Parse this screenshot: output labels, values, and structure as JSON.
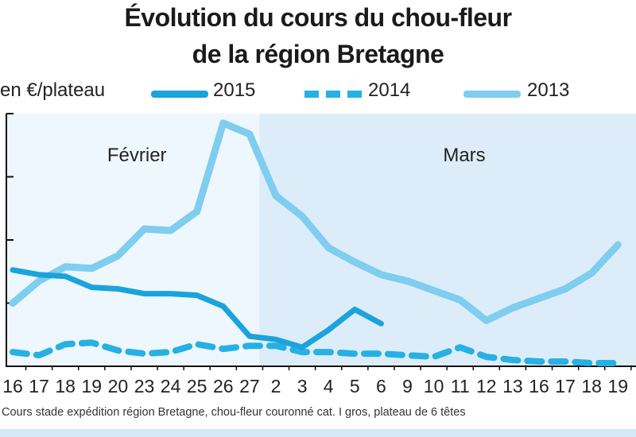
{
  "title_line1": "Évolution du cours du chou-fleur",
  "title_line2": "de la région Bretagne",
  "unit_label": "en €/plateau",
  "source": "Cours stade expédition région Bretagne, chou-fleur couronné cat. I gros, plateau de 6 têtes",
  "colors": {
    "series_2015": "#1aa3dc",
    "series_2014": "#27b0e3",
    "series_2013": "#7fcdef",
    "background_fevrier": "#eef7fd",
    "background_mars": "#dcedf9",
    "axis": "#111111"
  },
  "chart_data": {
    "type": "line",
    "title": "Évolution du cours du chou-fleur de la région Bretagne",
    "ylabel": "en €/plateau",
    "xlabel": "",
    "ylim": [
      0,
      8
    ],
    "y_ticks": [
      2,
      4,
      6,
      8
    ],
    "y_tick_labels_visible": false,
    "grid": false,
    "legend_position": "top",
    "periods": [
      {
        "label": "Février",
        "from": 0,
        "to": 9
      },
      {
        "label": "Mars",
        "from": 10,
        "to": 23
      }
    ],
    "categories": [
      "16",
      "17",
      "18",
      "19",
      "20",
      "23",
      "24",
      "25",
      "26",
      "27",
      "2",
      "3",
      "4",
      "5",
      "6",
      "9",
      "10",
      "11",
      "12",
      "13",
      "16",
      "17",
      "18",
      "19"
    ],
    "series": [
      {
        "name": "2015",
        "style": "solid",
        "values": [
          3.05,
          2.9,
          2.85,
          2.5,
          2.45,
          2.3,
          2.3,
          2.25,
          1.9,
          0.95,
          0.85,
          0.6,
          1.15,
          1.8,
          1.35,
          null,
          null,
          null,
          null,
          null,
          null,
          null,
          null,
          null
        ]
      },
      {
        "name": "2014",
        "style": "dashed",
        "values": [
          0.45,
          0.35,
          0.7,
          0.75,
          0.5,
          0.4,
          0.45,
          0.7,
          0.55,
          0.65,
          0.65,
          0.45,
          0.45,
          0.4,
          0.4,
          0.35,
          0.3,
          0.6,
          0.3,
          0.2,
          0.15,
          0.15,
          0.1,
          0.1
        ]
      },
      {
        "name": "2013",
        "style": "solid",
        "values": [
          2.0,
          2.7,
          3.15,
          3.1,
          3.5,
          4.35,
          4.3,
          4.9,
          7.7,
          7.35,
          5.4,
          4.75,
          3.75,
          3.3,
          2.9,
          2.7,
          2.4,
          2.1,
          1.45,
          1.85,
          2.15,
          2.45,
          2.95,
          3.85
        ]
      }
    ]
  }
}
